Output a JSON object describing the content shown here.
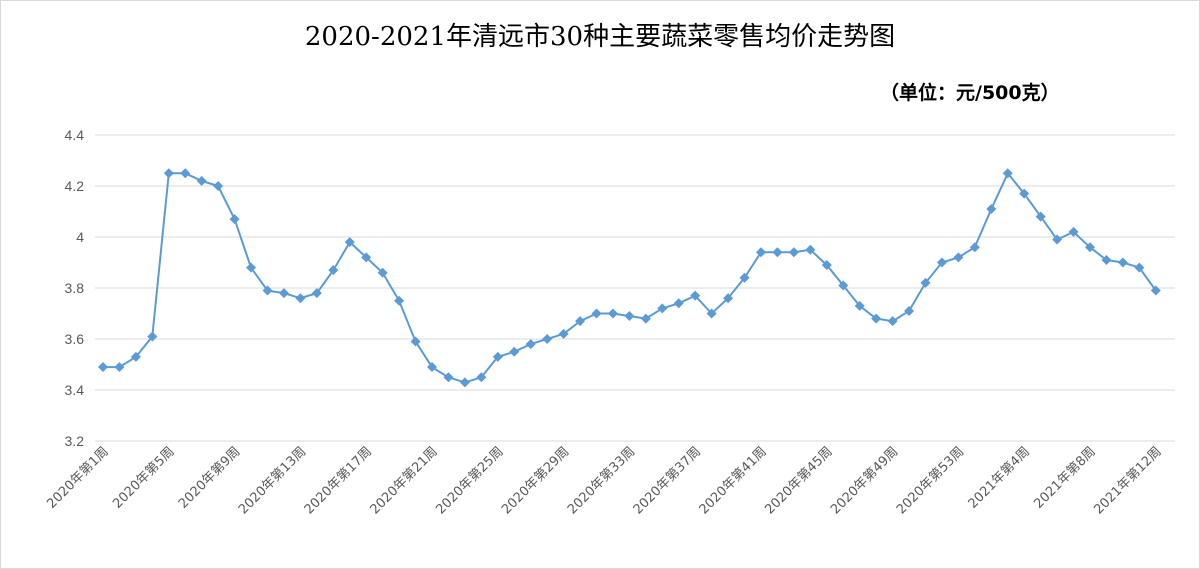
{
  "chart_data": {
    "type": "line",
    "title": "2020-2021年清远市30种主要蔬菜零售均价走势图",
    "unit_label": "（单位：元/500克）",
    "ylim": [
      3.2,
      4.4
    ],
    "y_ticks": [
      "3.2",
      "3.4",
      "3.6",
      "3.8",
      "4",
      "4.2",
      "4.4"
    ],
    "grid": true,
    "x_tick_labels": [
      {
        "index": 0,
        "label": "2020年第1周"
      },
      {
        "index": 4,
        "label": "2020年第5周"
      },
      {
        "index": 8,
        "label": "2020年第9周"
      },
      {
        "index": 12,
        "label": "2020年第13周"
      },
      {
        "index": 16,
        "label": "2020年第17周"
      },
      {
        "index": 20,
        "label": "2020年第21周"
      },
      {
        "index": 24,
        "label": "2020年第25周"
      },
      {
        "index": 28,
        "label": "2020年第29周"
      },
      {
        "index": 32,
        "label": "2020年第33周"
      },
      {
        "index": 36,
        "label": "2020年第37周"
      },
      {
        "index": 40,
        "label": "2020年第41周"
      },
      {
        "index": 44,
        "label": "2020年第45周"
      },
      {
        "index": 48,
        "label": "2020年第49周"
      },
      {
        "index": 52,
        "label": "2020年第53周"
      },
      {
        "index": 56,
        "label": "2021年第4周"
      },
      {
        "index": 60,
        "label": "2021年第8周"
      },
      {
        "index": 64,
        "label": "2021年第12周"
      }
    ],
    "values": [
      3.49,
      3.49,
      3.53,
      3.61,
      4.25,
      4.25,
      4.22,
      4.2,
      4.07,
      3.88,
      3.79,
      3.78,
      3.76,
      3.78,
      3.87,
      3.98,
      3.92,
      3.86,
      3.75,
      3.59,
      3.49,
      3.45,
      3.43,
      3.45,
      3.53,
      3.55,
      3.58,
      3.6,
      3.62,
      3.67,
      3.7,
      3.7,
      3.69,
      3.68,
      3.72,
      3.74,
      3.77,
      3.7,
      3.76,
      3.84,
      3.94,
      3.94,
      3.94,
      3.95,
      3.89,
      3.81,
      3.73,
      3.68,
      3.67,
      3.71,
      3.82,
      3.9,
      3.92,
      3.96,
      4.11,
      4.25,
      4.17,
      4.08,
      3.99,
      4.02,
      3.96,
      3.91,
      3.9,
      3.88,
      3.79
    ],
    "line_color": "#5B9BD5",
    "grid_color": "#d9d9d9"
  }
}
